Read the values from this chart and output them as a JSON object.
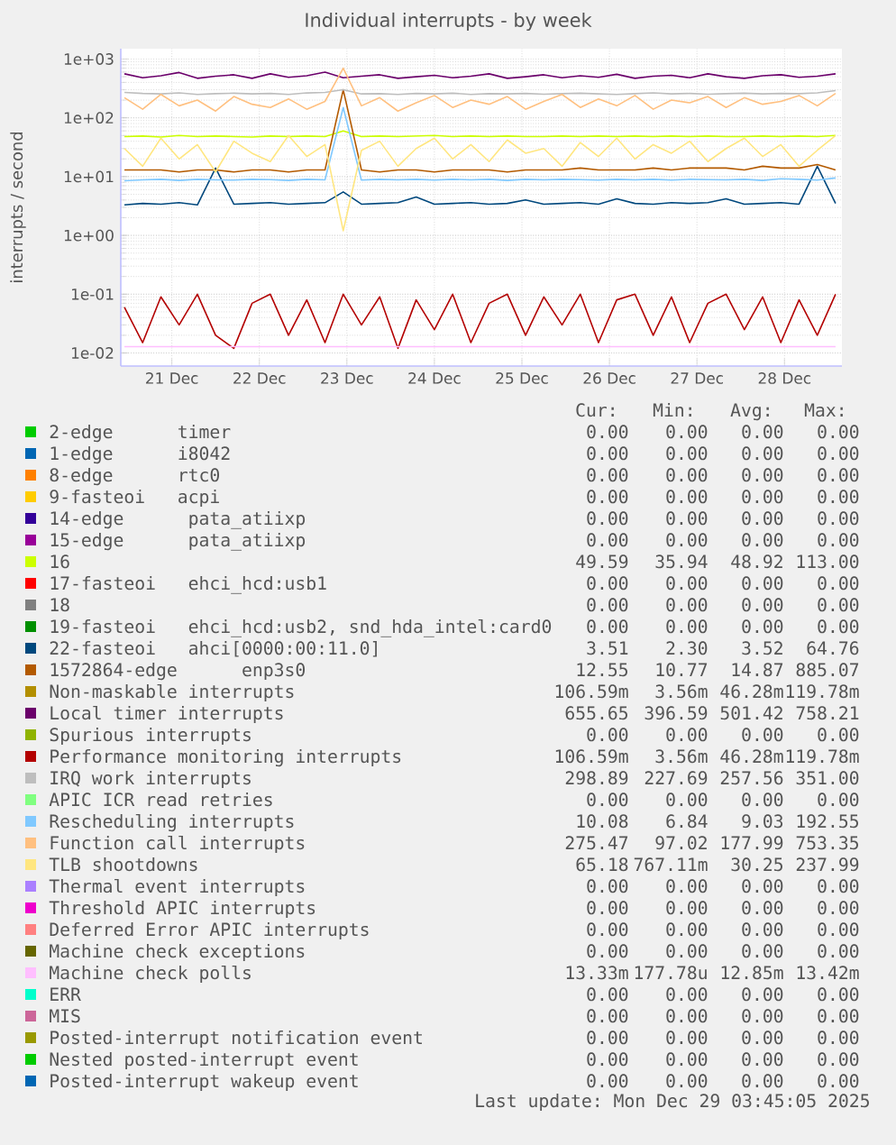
{
  "chart_data": {
    "type": "line",
    "title": "Individual interrupts - by week",
    "ylabel": "interrupts / second",
    "log": "y",
    "grid": true,
    "legend": "bottom",
    "xlim": [
      "2025-12-20T22:00",
      "2025-12-29T03:45"
    ],
    "xticks": [
      {
        "value": "2025-12-21T12:00",
        "label": "21 Dec"
      },
      {
        "value": "2025-12-22T12:00",
        "label": "22 Dec"
      },
      {
        "value": "2025-12-23T12:00",
        "label": "23 Dec"
      },
      {
        "value": "2025-12-24T12:00",
        "label": "24 Dec"
      },
      {
        "value": "2025-12-25T12:00",
        "label": "25 Dec"
      },
      {
        "value": "2025-12-26T12:00",
        "label": "26 Dec"
      },
      {
        "value": "2025-12-27T12:00",
        "label": "27 Dec"
      },
      {
        "value": "2025-12-28T12:00",
        "label": "28 Dec"
      }
    ],
    "ylim": [
      0.006,
      1500
    ],
    "yticks": [
      {
        "value": 0.01,
        "label": "1e-02"
      },
      {
        "value": 0.1,
        "label": "1e-01"
      },
      {
        "value": 1,
        "label": "1e+00"
      },
      {
        "value": 10,
        "label": "1e+01"
      },
      {
        "value": 100,
        "label": "1e+02"
      },
      {
        "value": 1000,
        "label": "1e+03"
      }
    ],
    "x": [
      "2025-12-20T23:00",
      "2025-12-21T04:00",
      "2025-12-21T09:00",
      "2025-12-21T14:00",
      "2025-12-21T19:00",
      "2025-12-22T00:00",
      "2025-12-22T05:00",
      "2025-12-22T10:00",
      "2025-12-22T15:00",
      "2025-12-22T20:00",
      "2025-12-23T01:00",
      "2025-12-23T06:00",
      "2025-12-23T11:00",
      "2025-12-23T16:00",
      "2025-12-23T21:00",
      "2025-12-24T02:00",
      "2025-12-24T07:00",
      "2025-12-24T12:00",
      "2025-12-24T17:00",
      "2025-12-24T22:00",
      "2025-12-25T03:00",
      "2025-12-25T08:00",
      "2025-12-25T13:00",
      "2025-12-25T18:00",
      "2025-12-25T23:00",
      "2025-12-26T04:00",
      "2025-12-26T09:00",
      "2025-12-26T14:00",
      "2025-12-26T19:00",
      "2025-12-27T00:00",
      "2025-12-27T05:00",
      "2025-12-27T10:00",
      "2025-12-27T15:00",
      "2025-12-27T20:00",
      "2025-12-28T01:00",
      "2025-12-28T06:00",
      "2025-12-28T11:00",
      "2025-12-28T16:00",
      "2025-12-28T21:00",
      "2025-12-29T02:00"
    ],
    "series": [
      {
        "name": "2-edge      timer",
        "color": "#00cc00",
        "values": [
          null,
          null,
          null,
          null,
          null,
          null,
          null,
          null,
          null,
          null,
          null,
          null,
          null,
          null,
          null,
          null,
          null,
          null,
          null,
          null,
          null,
          null,
          null,
          null,
          null,
          null,
          null,
          null,
          null,
          null,
          null,
          null,
          null,
          null,
          null,
          null,
          null,
          null,
          null,
          null
        ]
      },
      {
        "name": "1-edge      i8042",
        "color": "#0066b3",
        "values": [
          null,
          null,
          null,
          null,
          null,
          null,
          null,
          null,
          null,
          null,
          null,
          null,
          null,
          null,
          null,
          null,
          null,
          null,
          null,
          null,
          null,
          null,
          null,
          null,
          null,
          null,
          null,
          null,
          null,
          null,
          null,
          null,
          null,
          null,
          null,
          null,
          null,
          null,
          null,
          null
        ]
      },
      {
        "name": "8-edge      rtc0",
        "color": "#ff8000",
        "values": [
          null,
          null,
          null,
          null,
          null,
          null,
          null,
          null,
          null,
          null,
          null,
          null,
          null,
          null,
          null,
          null,
          null,
          null,
          null,
          null,
          null,
          null,
          null,
          null,
          null,
          null,
          null,
          null,
          null,
          null,
          null,
          null,
          null,
          null,
          null,
          null,
          null,
          null,
          null,
          null
        ]
      },
      {
        "name": "9-fasteoi   acpi",
        "color": "#ffcc00",
        "values": [
          null,
          null,
          null,
          null,
          null,
          null,
          null,
          null,
          null,
          null,
          null,
          null,
          null,
          null,
          null,
          null,
          null,
          null,
          null,
          null,
          null,
          null,
          null,
          null,
          null,
          null,
          null,
          null,
          null,
          null,
          null,
          null,
          null,
          null,
          null,
          null,
          null,
          null,
          null,
          null
        ]
      },
      {
        "name": "14-edge      pata_atiixp",
        "color": "#330099",
        "values": [
          null,
          null,
          null,
          null,
          null,
          null,
          null,
          null,
          null,
          null,
          null,
          null,
          null,
          null,
          null,
          null,
          null,
          null,
          null,
          null,
          null,
          null,
          null,
          null,
          null,
          null,
          null,
          null,
          null,
          null,
          null,
          null,
          null,
          null,
          null,
          null,
          null,
          null,
          null,
          null
        ]
      },
      {
        "name": "15-edge      pata_atiixp",
        "color": "#990099",
        "values": [
          null,
          null,
          null,
          null,
          null,
          null,
          null,
          null,
          null,
          null,
          null,
          null,
          null,
          null,
          null,
          null,
          null,
          null,
          null,
          null,
          null,
          null,
          null,
          null,
          null,
          null,
          null,
          null,
          null,
          null,
          null,
          null,
          null,
          null,
          null,
          null,
          null,
          null,
          null,
          null
        ]
      },
      {
        "name": "16",
        "color": "#ccff00",
        "values": [
          48,
          49,
          47,
          50,
          48,
          49,
          48,
          47,
          49,
          48,
          49,
          48,
          60,
          48,
          49,
          48,
          49,
          50,
          48,
          49,
          48,
          49,
          48,
          48,
          49,
          48,
          49,
          48,
          49,
          48,
          49,
          48,
          49,
          48,
          48,
          49,
          48,
          49,
          48,
          50
        ]
      },
      {
        "name": "17-fasteoi   ehci_hcd:usb1",
        "color": "#ff0000",
        "values": [
          null,
          null,
          null,
          null,
          null,
          null,
          null,
          null,
          null,
          null,
          null,
          null,
          null,
          null,
          null,
          null,
          null,
          null,
          null,
          null,
          null,
          null,
          null,
          null,
          null,
          null,
          null,
          null,
          null,
          null,
          null,
          null,
          null,
          null,
          null,
          null,
          null,
          null,
          null,
          null
        ]
      },
      {
        "name": "18",
        "color": "#808080",
        "values": [
          null,
          null,
          null,
          null,
          null,
          null,
          null,
          null,
          null,
          null,
          null,
          null,
          null,
          null,
          null,
          null,
          null,
          null,
          null,
          null,
          null,
          null,
          null,
          null,
          null,
          null,
          null,
          null,
          null,
          null,
          null,
          null,
          null,
          null,
          null,
          null,
          null,
          null,
          null,
          null
        ]
      },
      {
        "name": "19-fasteoi   ehci_hcd:usb2, snd_hda_intel:card0",
        "color": "#008f00",
        "values": [
          null,
          null,
          null,
          null,
          null,
          null,
          null,
          null,
          null,
          null,
          null,
          null,
          null,
          null,
          null,
          null,
          null,
          null,
          null,
          null,
          null,
          null,
          null,
          null,
          null,
          null,
          null,
          null,
          null,
          null,
          null,
          null,
          null,
          null,
          null,
          null,
          null,
          null,
          null,
          null
        ]
      },
      {
        "name": "22-fasteoi   ahci[0000:00:11.0]",
        "color": "#00487d",
        "values": [
          3.3,
          3.5,
          3.4,
          3.6,
          3.3,
          14,
          3.4,
          3.5,
          3.6,
          3.4,
          3.5,
          3.6,
          5.5,
          3.4,
          3.5,
          3.6,
          4.5,
          3.4,
          3.5,
          3.6,
          3.4,
          3.5,
          4.0,
          3.4,
          3.5,
          3.6,
          3.4,
          4.2,
          3.5,
          3.4,
          3.6,
          3.5,
          3.6,
          4.2,
          3.4,
          3.5,
          3.6,
          3.4,
          15,
          3.5
        ]
      },
      {
        "name": "1572864-edge      enp3s0",
        "color": "#b35a00",
        "values": [
          13,
          13,
          13,
          12,
          13,
          13,
          12,
          13,
          13,
          12,
          13,
          13,
          300,
          13,
          12,
          13,
          13,
          12,
          13,
          13,
          13,
          12,
          13,
          13,
          13,
          14,
          13,
          13,
          13,
          14,
          13,
          14,
          14,
          14,
          13,
          15,
          14,
          14,
          16,
          13
        ]
      },
      {
        "name": "Non-maskable interrupts",
        "color": "#b38f00",
        "values": [
          null,
          null,
          null,
          null,
          null,
          null,
          null,
          null,
          null,
          null,
          null,
          null,
          null,
          null,
          null,
          null,
          null,
          null,
          null,
          null,
          null,
          null,
          null,
          null,
          null,
          null,
          null,
          null,
          null,
          null,
          null,
          null,
          null,
          null,
          null,
          null,
          null,
          null,
          null,
          null
        ]
      },
      {
        "name": "Local timer interrupts",
        "color": "#6b006b",
        "values": [
          560,
          480,
          520,
          590,
          470,
          510,
          540,
          470,
          560,
          490,
          520,
          600,
          480,
          510,
          540,
          470,
          500,
          530,
          480,
          510,
          560,
          470,
          500,
          540,
          480,
          520,
          490,
          550,
          470,
          510,
          530,
          480,
          560,
          500,
          470,
          520,
          540,
          490,
          510,
          560
        ]
      },
      {
        "name": "Spurious interrupts",
        "color": "#8fb300",
        "values": [
          null,
          null,
          null,
          null,
          null,
          null,
          null,
          null,
          null,
          null,
          null,
          null,
          null,
          null,
          null,
          null,
          null,
          null,
          null,
          null,
          null,
          null,
          null,
          null,
          null,
          null,
          null,
          null,
          null,
          null,
          null,
          null,
          null,
          null,
          null,
          null,
          null,
          null,
          null,
          null
        ]
      },
      {
        "name": "Performance monitoring interrupts",
        "color": "#b30000",
        "values": [
          0.06,
          0.015,
          0.09,
          0.03,
          0.1,
          0.02,
          0.012,
          0.07,
          0.1,
          0.02,
          0.08,
          0.015,
          0.1,
          0.03,
          0.09,
          0.012,
          0.08,
          0.025,
          0.1,
          0.015,
          0.07,
          0.1,
          0.02,
          0.09,
          0.03,
          0.1,
          0.015,
          0.08,
          0.1,
          0.02,
          0.09,
          0.015,
          0.07,
          0.1,
          0.025,
          0.09,
          0.015,
          0.08,
          0.02,
          0.1
        ]
      },
      {
        "name": "IRQ work interrupts",
        "color": "#bebebe",
        "values": [
          270,
          260,
          255,
          265,
          250,
          258,
          262,
          255,
          260,
          250,
          265,
          270,
          300,
          255,
          258,
          250,
          260,
          255,
          262,
          250,
          258,
          255,
          260,
          252,
          258,
          262,
          255,
          250,
          258,
          265,
          255,
          260,
          252,
          258,
          262,
          255,
          260,
          258,
          265,
          290
        ]
      },
      {
        "name": "APIC ICR read retries",
        "color": "#80ff80",
        "values": [
          null,
          null,
          null,
          null,
          null,
          null,
          null,
          null,
          null,
          null,
          null,
          null,
          null,
          null,
          null,
          null,
          null,
          null,
          null,
          null,
          null,
          null,
          null,
          null,
          null,
          null,
          null,
          null,
          null,
          null,
          null,
          null,
          null,
          null,
          null,
          null,
          null,
          null,
          null,
          null
        ]
      },
      {
        "name": "Rescheduling interrupts",
        "color": "#80c9ff",
        "values": [
          8.5,
          8.8,
          9,
          8.6,
          9,
          8.8,
          8.7,
          9,
          8.9,
          8.6,
          9,
          8.8,
          150,
          8.7,
          9,
          8.8,
          9,
          8.7,
          9,
          8.8,
          9,
          8.6,
          9,
          8.8,
          9,
          8.9,
          8.7,
          9,
          8.8,
          9,
          8.7,
          9,
          8.9,
          8.8,
          9,
          8.6,
          9.2,
          9,
          8.7,
          9.5
        ]
      },
      {
        "name": "Function call interrupts",
        "color": "#ffc080",
        "values": [
          220,
          140,
          250,
          160,
          200,
          130,
          230,
          170,
          150,
          210,
          140,
          190,
          700,
          160,
          220,
          130,
          180,
          240,
          150,
          200,
          170,
          230,
          140,
          190,
          250,
          150,
          210,
          160,
          240,
          140,
          200,
          180,
          230,
          150,
          220,
          170,
          190,
          240,
          160,
          260
        ]
      },
      {
        "name": "TLB shootdowns",
        "color": "#ffe680",
        "values": [
          30,
          15,
          45,
          20,
          35,
          12,
          40,
          25,
          18,
          50,
          22,
          35,
          1.2,
          28,
          40,
          15,
          30,
          45,
          20,
          35,
          18,
          42,
          25,
          30,
          15,
          38,
          22,
          45,
          20,
          35,
          25,
          40,
          18,
          30,
          45,
          22,
          35,
          15,
          28,
          50
        ]
      },
      {
        "name": "Thermal event interrupts",
        "color": "#aa80ff",
        "values": [
          null,
          null,
          null,
          null,
          null,
          null,
          null,
          null,
          null,
          null,
          null,
          null,
          null,
          null,
          null,
          null,
          null,
          null,
          null,
          null,
          null,
          null,
          null,
          null,
          null,
          null,
          null,
          null,
          null,
          null,
          null,
          null,
          null,
          null,
          null,
          null,
          null,
          null,
          null,
          null
        ]
      },
      {
        "name": "Threshold APIC interrupts",
        "color": "#ee00cc",
        "values": [
          null,
          null,
          null,
          null,
          null,
          null,
          null,
          null,
          null,
          null,
          null,
          null,
          null,
          null,
          null,
          null,
          null,
          null,
          null,
          null,
          null,
          null,
          null,
          null,
          null,
          null,
          null,
          null,
          null,
          null,
          null,
          null,
          null,
          null,
          null,
          null,
          null,
          null,
          null,
          null
        ]
      },
      {
        "name": "Deferred Error APIC interrupts",
        "color": "#ff8080",
        "values": [
          null,
          null,
          null,
          null,
          null,
          null,
          null,
          null,
          null,
          null,
          null,
          null,
          null,
          null,
          null,
          null,
          null,
          null,
          null,
          null,
          null,
          null,
          null,
          null,
          null,
          null,
          null,
          null,
          null,
          null,
          null,
          null,
          null,
          null,
          null,
          null,
          null,
          null,
          null,
          null
        ]
      },
      {
        "name": "Machine check exceptions",
        "color": "#666600",
        "values": [
          null,
          null,
          null,
          null,
          null,
          null,
          null,
          null,
          null,
          null,
          null,
          null,
          null,
          null,
          null,
          null,
          null,
          null,
          null,
          null,
          null,
          null,
          null,
          null,
          null,
          null,
          null,
          null,
          null,
          null,
          null,
          null,
          null,
          null,
          null,
          null,
          null,
          null,
          null,
          null
        ]
      },
      {
        "name": "Machine check polls",
        "color": "#ffbfff",
        "x": [
          "2025-12-20T23:00",
          "2025-12-29T02:00"
        ],
        "values": [
          0.0128,
          0.0128
        ]
      },
      {
        "name": "ERR",
        "color": "#00ffcc",
        "values": [
          null,
          null,
          null,
          null,
          null,
          null,
          null,
          null,
          null,
          null,
          null,
          null,
          null,
          null,
          null,
          null,
          null,
          null,
          null,
          null,
          null,
          null,
          null,
          null,
          null,
          null,
          null,
          null,
          null,
          null,
          null,
          null,
          null,
          null,
          null,
          null,
          null,
          null,
          null,
          null
        ]
      },
      {
        "name": "MIS",
        "color": "#cc6699",
        "values": [
          null,
          null,
          null,
          null,
          null,
          null,
          null,
          null,
          null,
          null,
          null,
          null,
          null,
          null,
          null,
          null,
          null,
          null,
          null,
          null,
          null,
          null,
          null,
          null,
          null,
          null,
          null,
          null,
          null,
          null,
          null,
          null,
          null,
          null,
          null,
          null,
          null,
          null,
          null,
          null
        ]
      },
      {
        "name": "Posted-interrupt notification event",
        "color": "#999900",
        "values": [
          null,
          null,
          null,
          null,
          null,
          null,
          null,
          null,
          null,
          null,
          null,
          null,
          null,
          null,
          null,
          null,
          null,
          null,
          null,
          null,
          null,
          null,
          null,
          null,
          null,
          null,
          null,
          null,
          null,
          null,
          null,
          null,
          null,
          null,
          null,
          null,
          null,
          null,
          null,
          null
        ]
      },
      {
        "name": "Nested posted-interrupt event",
        "color": "#00cc00",
        "values": [
          null,
          null,
          null,
          null,
          null,
          null,
          null,
          null,
          null,
          null,
          null,
          null,
          null,
          null,
          null,
          null,
          null,
          null,
          null,
          null,
          null,
          null,
          null,
          null,
          null,
          null,
          null,
          null,
          null,
          null,
          null,
          null,
          null,
          null,
          null,
          null,
          null,
          null,
          null,
          null
        ]
      },
      {
        "name": "Posted-interrupt wakeup event",
        "color": "#0066b3",
        "values": [
          null,
          null,
          null,
          null,
          null,
          null,
          null,
          null,
          null,
          null,
          null,
          null,
          null,
          null,
          null,
          null,
          null,
          null,
          null,
          null,
          null,
          null,
          null,
          null,
          null,
          null,
          null,
          null,
          null,
          null,
          null,
          null,
          null,
          null,
          null,
          null,
          null,
          null,
          null,
          null
        ]
      }
    ],
    "annotations": [
      "Cur:",
      "Min:",
      "Avg:",
      "Max:",
      "0.00",
      "0.00",
      "0.00",
      "0.00",
      "0.00",
      "0.00",
      "0.00",
      "0.00",
      "0.00",
      "0.00",
      "0.00",
      "0.00",
      "0.00",
      "0.00",
      "0.00",
      "0.00",
      "0.00",
      "0.00",
      "0.00",
      "0.00",
      "0.00",
      "0.00",
      "0.00",
      "0.00",
      "49.59",
      "35.94",
      "48.92",
      "113.00",
      "0.00",
      "0.00",
      "0.00",
      "0.00",
      "0.00",
      "0.00",
      "0.00",
      "0.00",
      "0.00",
      "0.00",
      "0.00",
      "0.00",
      "3.51",
      "2.30",
      "3.52",
      "64.76",
      "12.55",
      "10.77",
      "14.87",
      "885.07",
      "106.59m",
      "3.56m",
      "46.28m",
      "119.78m",
      "655.65",
      "396.59",
      "501.42",
      "758.21",
      "0.00",
      "0.00",
      "0.00",
      "0.00",
      "106.59m",
      "3.56m",
      "46.28m",
      "119.78m",
      "298.89",
      "227.69",
      "257.56",
      "351.00",
      "0.00",
      "0.00",
      "0.00",
      "0.00",
      "10.08",
      "6.84",
      "9.03",
      "192.55",
      "275.47",
      "97.02",
      "177.99",
      "753.35",
      "65.18",
      "767.11m",
      "30.25",
      "237.99",
      "0.00",
      "0.00",
      "0.00",
      "0.00",
      "0.00",
      "0.00",
      "0.00",
      "0.00",
      "0.00",
      "0.00",
      "0.00",
      "0.00",
      "0.00",
      "0.00",
      "0.00",
      "0.00",
      "13.33m",
      "177.78u",
      "12.85m",
      "13.42m",
      "0.00",
      "0.00",
      "0.00",
      "0.00",
      "0.00",
      "0.00",
      "0.00",
      "0.00",
      "0.00",
      "0.00",
      "0.00",
      "0.00",
      "0.00",
      "0.00",
      "0.00",
      "0.00",
      "0.00",
      "0.00",
      "0.00",
      "0.00",
      "Last update: Mon Dec 29 03:45:05 2025"
    ]
  }
}
